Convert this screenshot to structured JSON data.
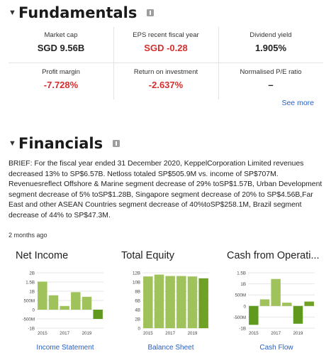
{
  "fundamentals": {
    "title": "Fundamentals",
    "row1": [
      {
        "label": "Market cap",
        "value": "SGD 9.56B",
        "negative": false
      },
      {
        "label": "EPS recent fiscal year",
        "value": "SGD -0.28",
        "negative": true
      },
      {
        "label": "Dividend yield",
        "value": "1.905%",
        "negative": false
      }
    ],
    "row2": [
      {
        "label": "Profit margin",
        "value": "-7.728%",
        "negative": true
      },
      {
        "label": "Return on investment",
        "value": "-2.637%",
        "negative": true
      },
      {
        "label": "Normalised P/E ratio",
        "value": "–",
        "negative": false
      }
    ],
    "see_more": "See more"
  },
  "financials": {
    "title": "Financials",
    "brief": "BRIEF: For the fiscal year ended 31 December 2020, KeppelCorporation Limited revenues decreased 13% to SP$6.57B. Netloss totaled SP$505.9M vs. income of SP$707M. Revenuesreflect Offshore & Marine segment decrease of 29% toSP$1.57B, Urban Development segment decrease of 5% toSP$1.28B, Singapore segment decrease of 20% to SP$4.56B,Far East and other ASEAN Countries segment decrease of 40%toSP$258.1M, Brazil segment decrease of 44% to SP$47.3M.",
    "updated": "2 months ago"
  },
  "colors": {
    "positive_bar": "#9fc25a",
    "latest_bar": "#6fa126",
    "negative_bar": "#5f9a1e",
    "link": "#2660c6",
    "negative_text": "#d3302f"
  },
  "chart_data": [
    {
      "type": "bar",
      "title": "Net Income",
      "link": "Income Statement",
      "categories": [
        "2015",
        "2016",
        "2017",
        "2018",
        "2019",
        "2020"
      ],
      "x_tick_labels": [
        "2015",
        "2017",
        "2019"
      ],
      "values": [
        1.52,
        0.78,
        0.2,
        0.95,
        0.7,
        -0.5
      ],
      "ylim": [
        -1,
        2
      ],
      "y_ticks": [
        {
          "v": 2,
          "label": "2B"
        },
        {
          "v": 1.5,
          "label": "1.5B"
        },
        {
          "v": 1,
          "label": "1B"
        },
        {
          "v": 0.5,
          "label": "500M"
        },
        {
          "v": 0,
          "label": "0"
        },
        {
          "v": -0.5,
          "label": "-500M"
        },
        {
          "v": -1,
          "label": "-1B"
        }
      ]
    },
    {
      "type": "bar",
      "title": "Total Equity",
      "link": "Balance Sheet",
      "categories": [
        "2015",
        "2016",
        "2017",
        "2018",
        "2019",
        "2020"
      ],
      "x_tick_labels": [
        "2015",
        "2017",
        "2019"
      ],
      "values": [
        11.2,
        11.6,
        11.3,
        11.3,
        11.2,
        10.8
      ],
      "ylim": [
        0,
        12
      ],
      "y_ticks": [
        {
          "v": 12,
          "label": "12B"
        },
        {
          "v": 10,
          "label": "10B"
        },
        {
          "v": 8,
          "label": "8B"
        },
        {
          "v": 6,
          "label": "6B"
        },
        {
          "v": 4,
          "label": "4B"
        },
        {
          "v": 2,
          "label": "2B"
        },
        {
          "v": 0,
          "label": "0"
        }
      ]
    },
    {
      "type": "bar",
      "title": "Cash from Operati...",
      "link": "Cash Flow",
      "categories": [
        "2015",
        "2016",
        "2017",
        "2018",
        "2019",
        "2020"
      ],
      "x_tick_labels": [
        "2015",
        "2017",
        "2019"
      ],
      "values": [
        -0.85,
        0.3,
        1.22,
        0.15,
        -0.8,
        0.2
      ],
      "ylim": [
        -1,
        1.5
      ],
      "y_ticks": [
        {
          "v": 1.5,
          "label": "1.5B"
        },
        {
          "v": 1,
          "label": "1B"
        },
        {
          "v": 0.5,
          "label": "500M"
        },
        {
          "v": 0,
          "label": "0"
        },
        {
          "v": -0.5,
          "label": "-500M"
        },
        {
          "v": -1,
          "label": "-1B"
        }
      ]
    }
  ]
}
